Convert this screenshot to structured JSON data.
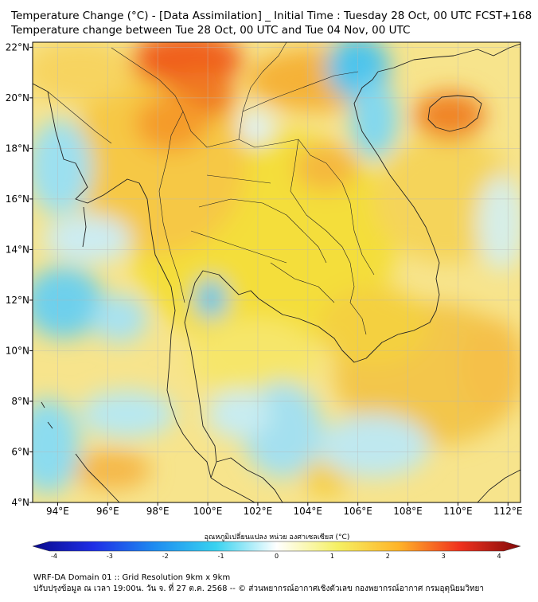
{
  "title": {
    "line1": "Temperature Change (°C) - [Data Assimilation] _ Initial Time : Tuesday 28 Oct, 00 UTC FCST+168",
    "line2": "Temperature change between Tue 28 Oct, 00 UTC and Tue 04 Nov, 00 UTC"
  },
  "map": {
    "lon_range": [
      93,
      112.5
    ],
    "lat_range": [
      4,
      22.2
    ],
    "lon_ticks": [
      {
        "value": 94,
        "label": "94°E"
      },
      {
        "value": 96,
        "label": "96°E"
      },
      {
        "value": 98,
        "label": "98°E"
      },
      {
        "value": 100,
        "label": "100°E"
      },
      {
        "value": 102,
        "label": "102°E"
      },
      {
        "value": 104,
        "label": "104°E"
      },
      {
        "value": 106,
        "label": "106°E"
      },
      {
        "value": 108,
        "label": "108°E"
      },
      {
        "value": 110,
        "label": "110°E"
      },
      {
        "value": 112,
        "label": "112°E"
      }
    ],
    "lat_ticks": [
      {
        "value": 22,
        "label": "22°N"
      },
      {
        "value": 20,
        "label": "20°N"
      },
      {
        "value": 18,
        "label": "18°N"
      },
      {
        "value": 16,
        "label": "16°N"
      },
      {
        "value": 14,
        "label": "14°N"
      },
      {
        "value": 12,
        "label": "12°N"
      },
      {
        "value": 10,
        "label": "10°N"
      },
      {
        "value": 8,
        "label": "8°N"
      },
      {
        "value": 6,
        "label": "6°N"
      },
      {
        "value": 4,
        "label": "4°N"
      }
    ],
    "grid": true
  },
  "colorbar": {
    "title": "อุณหภูมิเปลี่ยนแปลง หน่วย องศาเซลเซียส (°C)",
    "min": -4,
    "max": 4,
    "ticks": [
      "-4",
      "-3",
      "-2",
      "-1",
      "0",
      "1",
      "2",
      "3",
      "4"
    ],
    "colors": [
      "#0a0a8c",
      "#1e2ee6",
      "#1e8cf0",
      "#38d2f0",
      "#ffffff",
      "#f5f064",
      "#ffb428",
      "#f0321e",
      "#820a0a"
    ]
  },
  "footer": {
    "line1": "WRF-DA Domain 01 :: Grid Resolution 9km x 9km",
    "line2": "ปรับปรุงข้อมูล ณ เวลา 19:00น. วัน จ. ที่ 27 ต.ค. 2568 -- © ส่วนพยากรณ์อากาศเชิงตัวเลข กองพยากรณ์อากาศ กรมอุตุนิยมวิทยา"
  }
}
